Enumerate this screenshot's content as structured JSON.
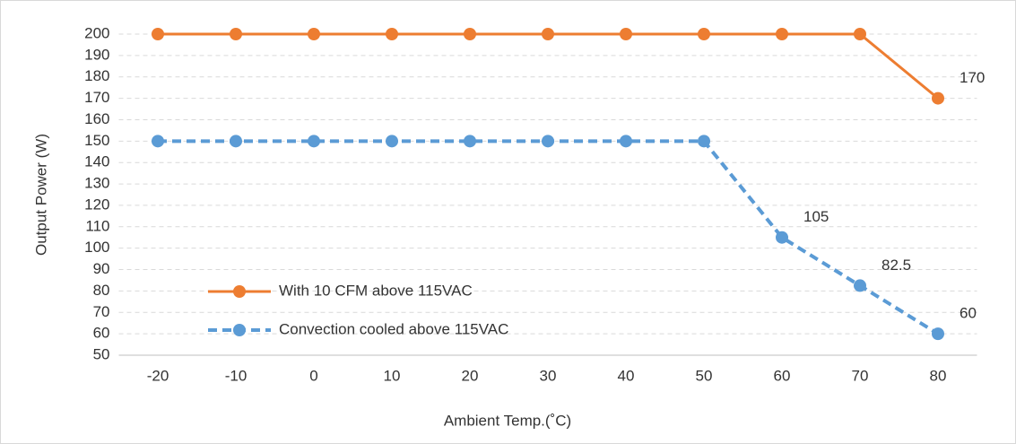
{
  "chart_data": {
    "type": "line",
    "x": [
      -20,
      -10,
      0,
      10,
      20,
      30,
      40,
      50,
      60,
      70,
      80
    ],
    "xlim": [
      -25,
      85
    ],
    "xticks": [
      -20,
      -10,
      0,
      10,
      20,
      30,
      40,
      50,
      60,
      70,
      80
    ],
    "ylim": [
      50,
      200
    ],
    "yticks": [
      50,
      60,
      70,
      80,
      90,
      100,
      110,
      120,
      130,
      140,
      150,
      160,
      170,
      180,
      190,
      200
    ],
    "grid": true,
    "xlabel": "Ambient Temp.(˚C)",
    "ylabel": "Output  Power (W)",
    "series": [
      {
        "name": "With 10 CFM above 115VAC",
        "color": "#ed7d31",
        "dash": false,
        "values": [
          200,
          200,
          200,
          200,
          200,
          200,
          200,
          200,
          200,
          200,
          170
        ],
        "value_labels": [
          null,
          null,
          null,
          null,
          null,
          null,
          null,
          null,
          null,
          null,
          "170"
        ]
      },
      {
        "name": "Convection cooled above 115VAC",
        "color": "#5b9bd5",
        "dash": true,
        "values": [
          150,
          150,
          150,
          150,
          150,
          150,
          150,
          150,
          105,
          82.5,
          60
        ],
        "value_labels": [
          null,
          null,
          null,
          null,
          null,
          null,
          null,
          null,
          "105",
          "82.5",
          "60"
        ]
      }
    ]
  }
}
